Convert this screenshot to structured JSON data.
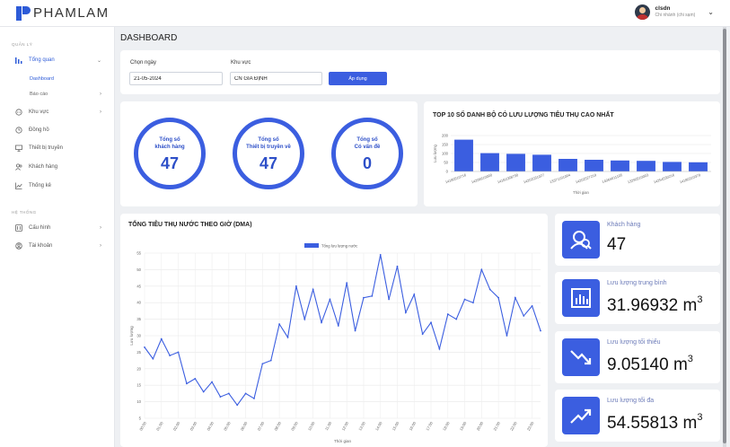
{
  "app": {
    "brand": "PHAMLAM"
  },
  "user": {
    "name": "clsdn",
    "role": "Chi nhánh (chi sạm)"
  },
  "sidebar": {
    "section1": "QUẢN LÝ",
    "section2": "HỆ THỐNG",
    "items": [
      {
        "label": "Tổng quan",
        "icon": "bar-chart-icon"
      },
      {
        "label": "Dashboard"
      },
      {
        "label": "Báo cáo"
      },
      {
        "label": "Khu vực",
        "icon": "location-icon"
      },
      {
        "label": "Đồng hồ",
        "icon": "clock-icon"
      },
      {
        "label": "Thiết bị truyền",
        "icon": "monitor-icon"
      },
      {
        "label": "Khách hàng",
        "icon": "users-icon"
      },
      {
        "label": "Thống kê",
        "icon": "line-chart-icon"
      },
      {
        "label": "Cấu hình",
        "icon": "settings-icon"
      },
      {
        "label": "Tài khoản",
        "icon": "account-icon"
      }
    ]
  },
  "page": {
    "title": "DASHBOARD"
  },
  "filters": {
    "date_label": "Chọn ngày",
    "date_value": "21-05-2024",
    "area_label": "Khu vực",
    "area_value": "CN GIA ĐỊNH",
    "apply": "Áp dụng"
  },
  "summary": [
    {
      "label1": "Tổng số",
      "label2": "khách hàng",
      "value": "47"
    },
    {
      "label1": "Tổng số",
      "label2": "Thiết bị truyền về",
      "value": "47"
    },
    {
      "label1": "Tổng số",
      "label2": "Có vấn đề",
      "value": "0"
    }
  ],
  "stats": [
    {
      "label": "Khách hàng",
      "value": "47",
      "unit": "",
      "sup": "",
      "icon": "customers-icon"
    },
    {
      "label": "Lưu lượng trung bình",
      "value": "31.96932",
      "unit": " m",
      "sup": "3",
      "icon": "bar-chart-icon"
    },
    {
      "label": "Lưu lượng tối thiểu",
      "value": "9.05140",
      "unit": " m",
      "sup": "3",
      "icon": "trend-down-icon"
    },
    {
      "label": "Lưu lượng tối đa",
      "value": "54.55813",
      "unit": " m",
      "sup": "3",
      "icon": "trend-up-icon"
    }
  ],
  "chart_data": [
    {
      "type": "bar",
      "title": "TOP 10 SỐ DANH BỘ CÓ LƯU LƯỢNG TIÊU THỤ CAO NHẤT",
      "xlabel": "Thời gian",
      "ylabel": "Lưu lượng",
      "ylim": [
        0,
        200
      ],
      "yticks": [
        0,
        50,
        100,
        150,
        200
      ],
      "categories": [
        "14180510716",
        "14206610000",
        "14181068730",
        "14202031027",
        "13371191004",
        "14202527219",
        "14064011105",
        "13290510003",
        "14254530216",
        "14180310379"
      ],
      "values": [
        177,
        102,
        98,
        93,
        70,
        65,
        61,
        59,
        53,
        51
      ],
      "color": "#3b5ee0",
      "grid": true
    },
    {
      "type": "line",
      "title": "TỔNG TIÊU THỤ NƯỚC THEO GIỜ (DMA)",
      "xlabel": "Thời gian",
      "ylabel": "Lưu lượng",
      "legend": "Tổng lưu lượng nước",
      "legend_position": "top",
      "ylim": [
        5,
        55
      ],
      "yticks": [
        5,
        10,
        15,
        20,
        25,
        30,
        35,
        40,
        45,
        50,
        55
      ],
      "x_ticks": [
        "00:00",
        "01:00",
        "02:00",
        "03:00",
        "04:00",
        "05:00",
        "06:00",
        "07:00",
        "08:00",
        "09:00",
        "10:00",
        "11:00",
        "12:00",
        "13:00",
        "14:00",
        "15:00",
        "16:00",
        "17:00",
        "18:00",
        "19:00",
        "20:00",
        "21:00",
        "22:00",
        "23:00"
      ],
      "points_per_hour": 2,
      "values": [
        26.5,
        23,
        29,
        24,
        25,
        15.5,
        17,
        13,
        16,
        11.5,
        12.5,
        9,
        12.5,
        11,
        21.5,
        22.5,
        33.5,
        29.5,
        45,
        35,
        44,
        34,
        41,
        33,
        46,
        31.5,
        41.5,
        42,
        54.5,
        41,
        51,
        37,
        42.5,
        30.5,
        34,
        26,
        36.5,
        35,
        41,
        40,
        50,
        44,
        41.5,
        30,
        41.5,
        36,
        39,
        31.5
      ],
      "color": "#3b5ee0",
      "grid": true
    }
  ]
}
